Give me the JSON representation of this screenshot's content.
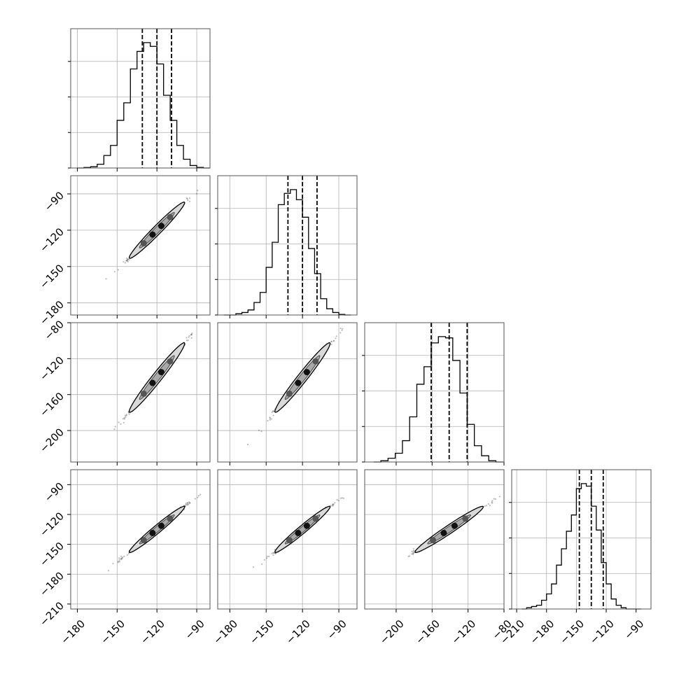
{
  "chart_data": {
    "type": "corner",
    "title": "",
    "grid": true,
    "axis_labels": [
      "",
      "",
      "",
      ""
    ],
    "ranges": [
      [
        -185,
        -80
      ],
      [
        -190,
        -75
      ],
      [
        -235,
        -80
      ],
      [
        -215,
        -75
      ]
    ],
    "ticks": [
      [
        -180,
        -150,
        -120,
        -90
      ],
      [
        -180,
        -150,
        -120,
        -90
      ],
      [
        -200,
        -160,
        -120,
        -80
      ],
      [
        -210,
        -180,
        -150,
        -120,
        -90
      ]
    ],
    "tick_labels": [
      [
        "−180",
        "−150",
        "−120",
        "−90"
      ],
      [
        "−180",
        "−150",
        "−120",
        "−90"
      ],
      [
        "−200",
        "−160",
        "−120",
        "−80"
      ],
      [
        "−210",
        "−180",
        "−150",
        "−120",
        "−90"
      ]
    ],
    "quantiles": [
      [
        -131,
        -120,
        -109
      ],
      [
        -132,
        -120,
        -108
      ],
      [
        -161,
        -141,
        -121
      ],
      [
        -147,
        -135,
        -123
      ]
    ],
    "histograms": [
      {
        "bin_edges": [
          -180,
          -175,
          -170,
          -165,
          -160,
          -155,
          -150,
          -145,
          -140,
          -135,
          -130,
          -125,
          -120,
          -115,
          -110,
          -105,
          -100,
          -95,
          -90,
          -85,
          -80
        ],
        "counts": [
          0,
          0.004,
          0.01,
          0.03,
          0.1,
          0.18,
          0.38,
          0.52,
          0.79,
          0.93,
          1.0,
          0.97,
          0.83,
          0.58,
          0.38,
          0.18,
          0.07,
          0.02,
          0.005,
          0
        ]
      },
      {
        "bin_edges": [
          -185,
          -180,
          -175,
          -170,
          -165,
          -160,
          -155,
          -150,
          -145,
          -140,
          -135,
          -130,
          -125,
          -120,
          -115,
          -110,
          -105,
          -100,
          -95,
          -90,
          -85,
          -80
        ],
        "counts": [
          0,
          0,
          0.01,
          0.02,
          0.04,
          0.1,
          0.18,
          0.38,
          0.58,
          0.88,
          0.97,
          1.0,
          0.92,
          0.78,
          0.53,
          0.33,
          0.13,
          0.05,
          0.02,
          0.005,
          0
        ]
      },
      {
        "bin_edges": [
          -225,
          -217,
          -209,
          -201,
          -193,
          -185,
          -177,
          -169,
          -161,
          -153,
          -145,
          -137,
          -129,
          -121,
          -113,
          -105,
          -97,
          -89,
          -81
        ],
        "counts": [
          0,
          0.01,
          0.03,
          0.07,
          0.17,
          0.36,
          0.62,
          0.76,
          0.95,
          1.0,
          0.99,
          0.81,
          0.55,
          0.3,
          0.13,
          0.05,
          0.01,
          0
        ]
      },
      {
        "bin_edges": [
          -205,
          -200,
          -195,
          -190,
          -185,
          -180,
          -175,
          -170,
          -165,
          -160,
          -155,
          -150,
          -145,
          -140,
          -135,
          -130,
          -125,
          -120,
          -115,
          -110,
          -105,
          -100,
          -95,
          -90,
          -85
        ],
        "counts": [
          0,
          0.01,
          0.02,
          0.03,
          0.07,
          0.12,
          0.2,
          0.35,
          0.48,
          0.62,
          0.75,
          0.96,
          1.0,
          0.98,
          0.82,
          0.63,
          0.37,
          0.2,
          0.08,
          0.03,
          0.01,
          0,
          0,
          0
        ]
      }
    ],
    "scatter": {
      "mean": [
        -120,
        -120,
        -141,
        -135
      ],
      "sd": [
        11,
        12,
        20,
        12
      ],
      "correlation": 0.995
    }
  }
}
